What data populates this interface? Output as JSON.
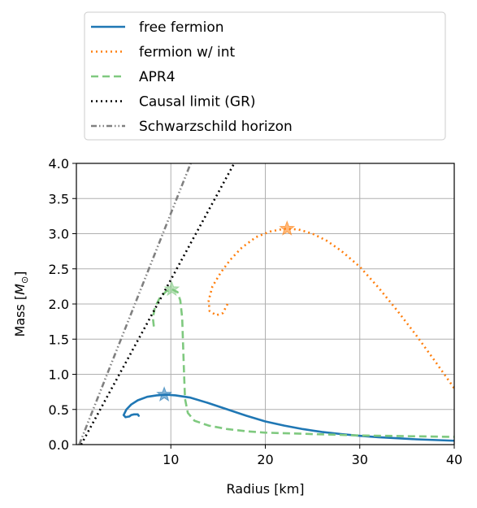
{
  "chart_data": {
    "type": "line",
    "title": "",
    "xlabel": "Radius [km]",
    "ylabel_prefix": "Mass [",
    "ylabel_symbol": "M",
    "ylabel_subscript": "⊙",
    "ylabel_suffix": "]",
    "xlim": [
      0,
      40
    ],
    "ylim": [
      0,
      4.0
    ],
    "x_ticks": [
      {
        "value": 10,
        "label": "10"
      },
      {
        "value": 20,
        "label": "20"
      },
      {
        "value": 30,
        "label": "30"
      },
      {
        "value": 40,
        "label": "40"
      }
    ],
    "y_ticks": [
      {
        "value": 0.0,
        "label": "0.0"
      },
      {
        "value": 0.5,
        "label": "0.5"
      },
      {
        "value": 1.0,
        "label": "1.0"
      },
      {
        "value": 1.5,
        "label": "1.5"
      },
      {
        "value": 2.0,
        "label": "2.0"
      },
      {
        "value": 2.5,
        "label": "2.5"
      },
      {
        "value": 3.0,
        "label": "3.0"
      },
      {
        "value": 3.5,
        "label": "3.5"
      },
      {
        "value": 4.0,
        "label": "4.0"
      }
    ],
    "grid": true,
    "legend_position": "above the plot",
    "series": [
      {
        "name": "free fermion",
        "color": "#1f77b4",
        "style": "solid",
        "points": [
          [
            6.6,
            0.41
          ],
          [
            6.5,
            0.43
          ],
          [
            6.1,
            0.43
          ],
          [
            5.8,
            0.42
          ],
          [
            5.6,
            0.4
          ],
          [
            5.2,
            0.39
          ],
          [
            5.0,
            0.42
          ],
          [
            5.3,
            0.5
          ],
          [
            5.8,
            0.57
          ],
          [
            6.5,
            0.63
          ],
          [
            7.5,
            0.68
          ],
          [
            8.5,
            0.7
          ],
          [
            9.5,
            0.71
          ],
          [
            10.5,
            0.7
          ],
          [
            12,
            0.67
          ],
          [
            14,
            0.59
          ],
          [
            16,
            0.5
          ],
          [
            18,
            0.41
          ],
          [
            20,
            0.33
          ],
          [
            22,
            0.27
          ],
          [
            24,
            0.22
          ],
          [
            26,
            0.18
          ],
          [
            28,
            0.15
          ],
          [
            30,
            0.125
          ],
          [
            32,
            0.105
          ],
          [
            34,
            0.09
          ],
          [
            36,
            0.075
          ],
          [
            38,
            0.065
          ],
          [
            40,
            0.055
          ]
        ],
        "max_marker": [
          9.3,
          0.71
        ]
      },
      {
        "name": "fermion w/ int",
        "color": "#ff7f0e",
        "style": "dotted",
        "points": [
          [
            16.0,
            2.0
          ],
          [
            15.5,
            1.87
          ],
          [
            14.8,
            1.84
          ],
          [
            14.1,
            1.9
          ],
          [
            14.0,
            2.05
          ],
          [
            14.4,
            2.25
          ],
          [
            15.3,
            2.45
          ],
          [
            16.3,
            2.63
          ],
          [
            17.5,
            2.8
          ],
          [
            19,
            2.95
          ],
          [
            20.5,
            3.03
          ],
          [
            22,
            3.07
          ],
          [
            23.5,
            3.06
          ],
          [
            25,
            3.0
          ],
          [
            26.5,
            2.9
          ],
          [
            28,
            2.76
          ],
          [
            30,
            2.53
          ],
          [
            32,
            2.23
          ],
          [
            34,
            1.9
          ],
          [
            36,
            1.55
          ],
          [
            38,
            1.18
          ],
          [
            40,
            0.8
          ]
        ],
        "max_marker": [
          22.3,
          3.07
        ]
      },
      {
        "name": "APR4",
        "color": "#7fc97f",
        "style": "dashed",
        "points": [
          [
            8.2,
            1.68
          ],
          [
            8.1,
            1.8
          ],
          [
            8.3,
            1.95
          ],
          [
            8.8,
            2.08
          ],
          [
            9.5,
            2.18
          ],
          [
            10.1,
            2.21
          ],
          [
            10.7,
            2.17
          ],
          [
            11.0,
            2.05
          ],
          [
            11.2,
            1.8
          ],
          [
            11.3,
            1.4
          ],
          [
            11.4,
            1.0
          ],
          [
            11.5,
            0.65
          ],
          [
            11.8,
            0.45
          ],
          [
            12.5,
            0.34
          ],
          [
            14,
            0.27
          ],
          [
            16,
            0.22
          ],
          [
            18,
            0.19
          ],
          [
            20,
            0.17
          ],
          [
            25,
            0.15
          ],
          [
            30,
            0.13
          ],
          [
            35,
            0.12
          ],
          [
            40,
            0.11
          ]
        ],
        "max_marker": [
          10.1,
          2.21
        ]
      },
      {
        "name": "Causal limit (GR)",
        "color": "#000000",
        "style": "dotted",
        "points": [
          [
            0.5,
            0.0
          ],
          [
            16.7,
            4.0
          ]
        ]
      },
      {
        "name": "Schwarzschild horizon",
        "color": "#808080",
        "style": "dashdotdot",
        "points": [
          [
            0.3,
            0.0
          ],
          [
            12.1,
            4.0
          ]
        ]
      }
    ]
  }
}
